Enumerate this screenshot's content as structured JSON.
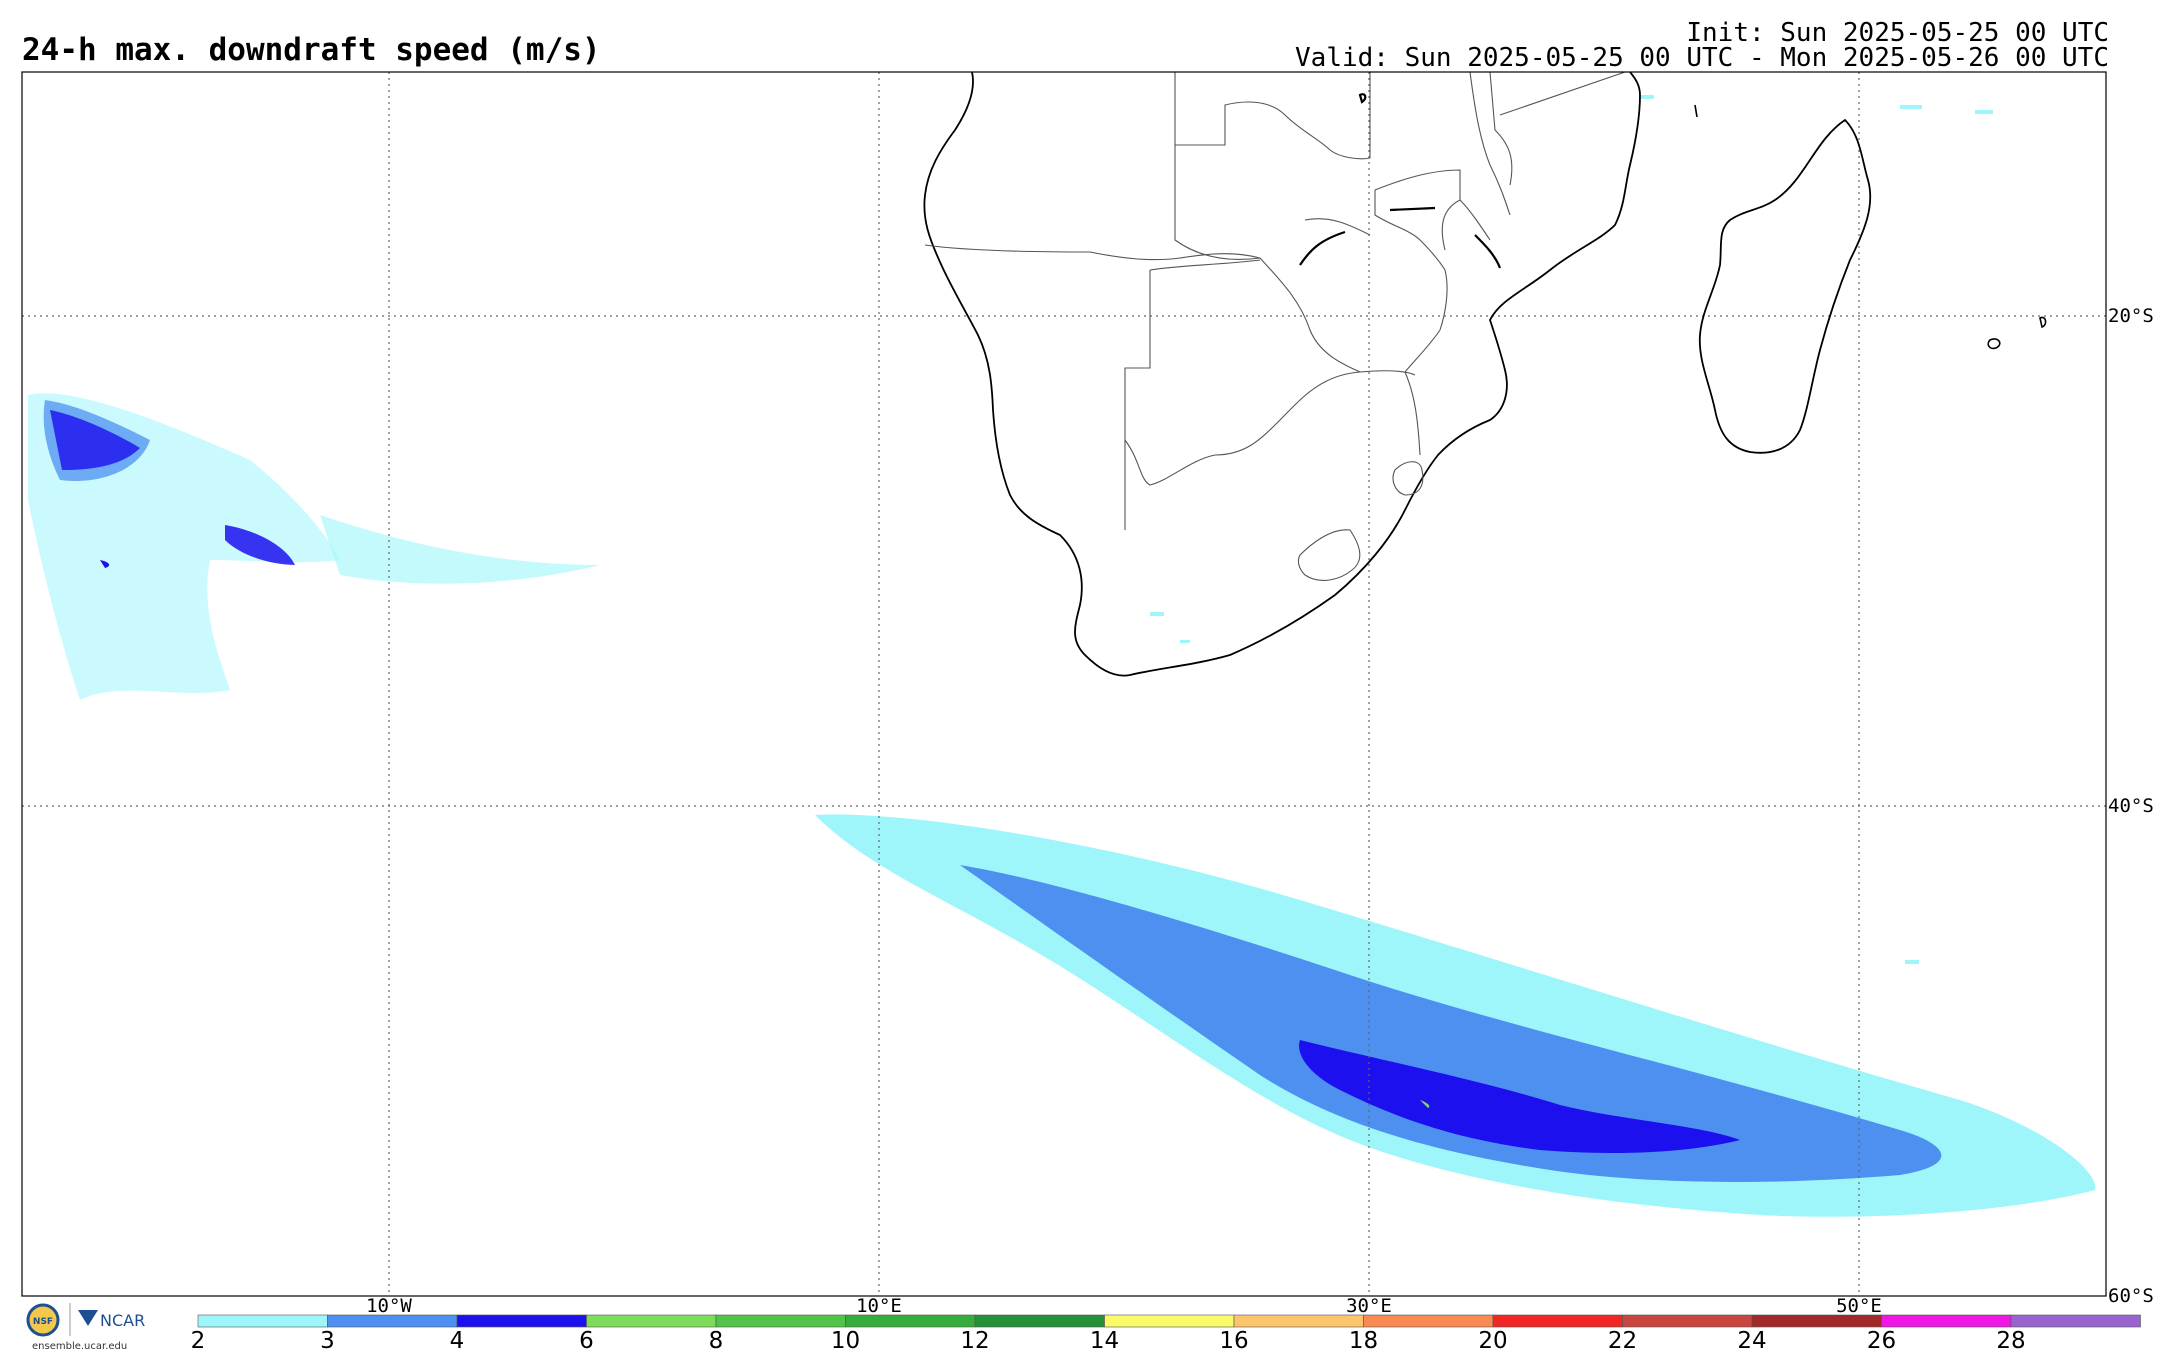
{
  "header": {
    "title": "24-h max. downdraft speed (m/s)",
    "init": "Init: Sun 2025-05-25 00 UTC",
    "valid": "Valid: Sun 2025-05-25 00 UTC - Mon 2025-05-26 00 UTC"
  },
  "map": {
    "longitude_labels": [
      "10°W",
      "10°E",
      "30°E",
      "50°E"
    ],
    "latitude_labels": [
      "20°S",
      "40°S",
      "60°S"
    ],
    "gridlines": "dotted",
    "features": [
      "southern-africa-coastline",
      "country-borders",
      "madagascar",
      "lakes"
    ]
  },
  "colorbar": {
    "ticks": [
      "2",
      "3",
      "4",
      "6",
      "8",
      "10",
      "12",
      "14",
      "16",
      "18",
      "20",
      "22",
      "24",
      "26",
      "28"
    ],
    "colors": [
      "#9ef6fb",
      "#4d90f0",
      "#1c10ee",
      "#7ddc5a",
      "#52c548",
      "#35ad3d",
      "#25903a",
      "#fbfa6b",
      "#fbc56a",
      "#f98a52",
      "#f22525",
      "#c84640",
      "#a02a2a",
      "#ef17e3",
      "#9964cd"
    ]
  },
  "logos": {
    "nsf": "NSF",
    "ncar": "NCAR",
    "site": "ensemble.ucar.edu"
  }
}
